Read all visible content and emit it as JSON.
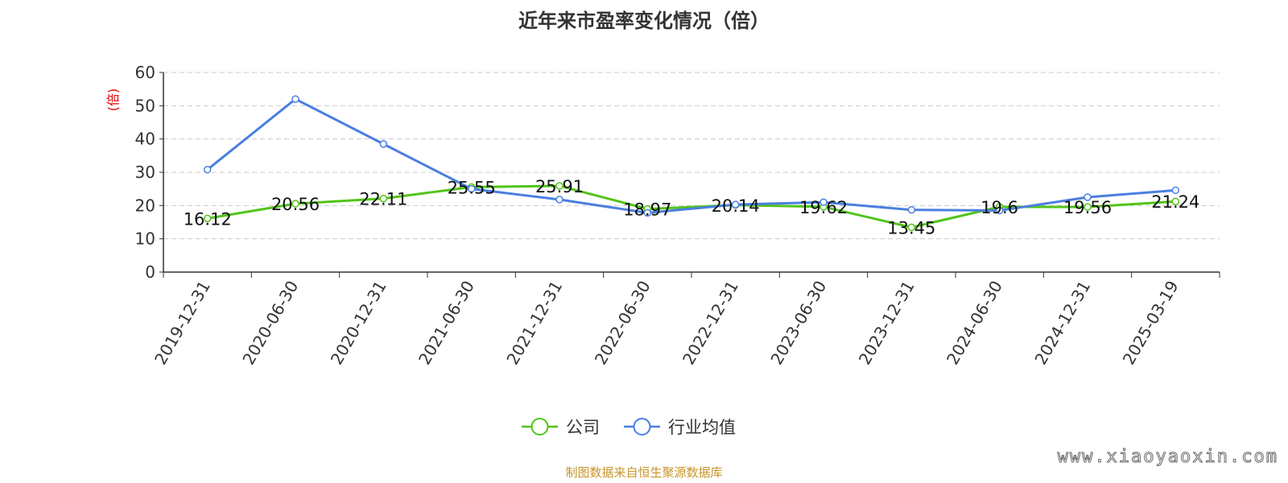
{
  "chart_data": {
    "type": "line",
    "title": "近年来市盈率变化情况（倍）",
    "ylabel": "(倍)",
    "xlabel": "",
    "ylim": [
      0,
      60
    ],
    "yticks": [
      0,
      10,
      20,
      30,
      40,
      50,
      60
    ],
    "categories": [
      "2019-12-31",
      "2020-06-30",
      "2020-12-31",
      "2021-06-30",
      "2021-12-31",
      "2022-06-30",
      "2022-12-31",
      "2023-06-30",
      "2023-12-31",
      "2024-06-30",
      "2024-12-31",
      "2025-03-19"
    ],
    "series": [
      {
        "name": "公司",
        "color": "#52c41a",
        "values": [
          16.12,
          20.56,
          22.11,
          25.55,
          25.91,
          18.97,
          20.14,
          19.62,
          13.45,
          19.6,
          19.56,
          21.24
        ],
        "labels": [
          "16.12",
          "20.56",
          "22.11",
          "25.55",
          "25.91",
          "18.97",
          "20.14",
          "19.62",
          "13.45",
          "19.6",
          "19.56",
          "21.24"
        ]
      },
      {
        "name": "行业均值",
        "color": "#4a7fe0",
        "values": [
          30.8,
          52.0,
          38.5,
          25.0,
          21.8,
          17.8,
          20.3,
          21.0,
          18.7,
          18.5,
          22.5,
          24.6
        ]
      }
    ],
    "grid": true,
    "legend_position": "bottom"
  },
  "footer": {
    "source": "制图数据来自恒生聚源数据库",
    "watermark": "www.xiaoyaoxin.com"
  }
}
